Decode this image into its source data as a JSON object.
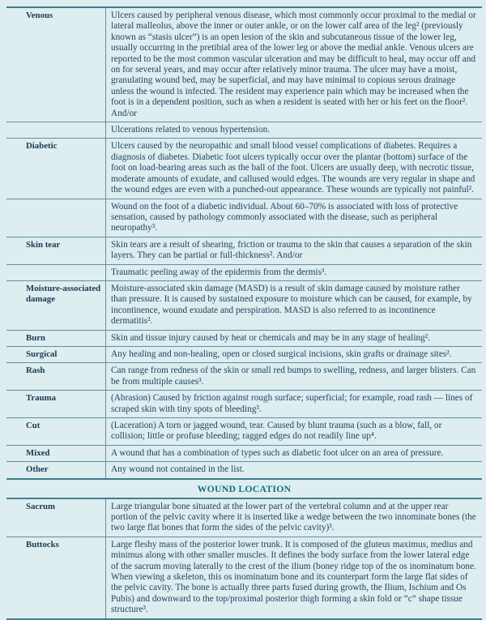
{
  "table": {
    "section_header": "WOUND LOCATION",
    "colors": {
      "background": "#ddedf0",
      "row_border": "#5d929d",
      "section_border": "#417e8b",
      "body_text": "#21455e",
      "label_text": "#1c3a52",
      "section_header_text": "#156e83"
    },
    "wound_types": [
      {
        "label": "Venous",
        "desc": "Ulcers caused by peripheral venous disease, which most commonly occur proximal to the medial or lateral malleolus, above the inner or outer ankle, or on the lower calf area of the leg² (previously known as “stasis ulcer”) is an open lesion of the skin and subcutaneous tissue of the lower leg, usually occurring in the pretibial area of the lower leg or above the medial ankle. Venous ulcers are reported to be the most common vascular ulceration and may be difficult to heal, may occur off and on for several years, and may occur after relatively minor trauma. The ulcer may have a moist, granulating wound bed, may be superficial, and may have minimal to copious serous drainage unless the wound is infected. The resident may experience pain which may be increased when the foot is in a dependent position, such as when a resident is seated with her or his feet on the floor². And/or"
      },
      {
        "label": "",
        "desc": "Ulcerations related to venous hypertension."
      },
      {
        "label": "Diabetic",
        "desc": "Ulcers caused by the neuropathic and small blood vessel complications of diabetes. Requires a diagnosis of diabetes. Diabetic foot ulcers typically occur over the plantar (bottom) surface of the foot on load-bearing areas such as the ball of the foot. Ulcers are usually deep, with necrotic tissue, moderate amounts of exudate, and callused would edges. The wounds are very regular in shape and the wound edges are even with a punched-out appearance. These wounds are typically not painful²."
      },
      {
        "label": "",
        "desc": "Wound on the foot of a diabetic individual. About 60–70% is associated with loss of protective sensation, caused by pathology commonly associated with the disease, such as peripheral neuropathy³."
      },
      {
        "label": "Skin tear",
        "desc": "Skin tears are a result of shearing, friction or trauma to the skin that causes a separation of the skin layers. They can be partial or full-thickness². And/or"
      },
      {
        "label": "",
        "desc": "Traumatic peeling away of the epidermis from the dermis³."
      },
      {
        "label": "Moisture-associated damage",
        "desc": "Moisture-associated skin damage (MASD) is a result of skin damage caused by moisture rather than pressure. It is caused by sustained exposure to moisture which can be caused, for example, by incontinence, wound exudate and perspiration. MASD is also referred to as incontinence dermatitis²."
      },
      {
        "label": "Burn",
        "desc": "Skin and tissue injury caused by heat or chemicals and may be in any stage of healing²."
      },
      {
        "label": "Surgical",
        "desc": "Any healing and non-healing, open or closed surgical incisions, skin grafts or drainage sites²."
      },
      {
        "label": "Rash",
        "desc": "Can range from redness of the skin or small red bumps to swelling, redness, and larger blisters. Can be from multiple causes³."
      },
      {
        "label": "Trauma",
        "desc": "(Abrasion) Caused by friction against rough surface; superficial; for example, road rash — lines of scraped skin with tiny spots of bleeding³."
      },
      {
        "label": "Cut",
        "desc": "(Laceration) A torn or jagged wound, tear. Caused by blunt trauma (such as a blow, fall, or collision; little or profuse bleeding; ragged edges do not readily line up⁴."
      },
      {
        "label": "Mixed",
        "desc": "A wound that has a combination of types such as diabetic foot ulcer on an area of pressure."
      },
      {
        "label": "Other",
        "desc": "Any wound not contained in the list."
      }
    ],
    "locations": [
      {
        "label": "Sacrum",
        "desc": "Large triangular bone situated at the lower part of the vertebral column and at the upper rear portion of the pelvic cavity where it is inserted like a wedge between the two innominate bones (the two large flat bones that form the sides of the pelvic cavity)³."
      },
      {
        "label": "Buttocks",
        "desc": "Large fleshy mass of the posterior lower trunk. It is composed of the gluteus maximus, medius and minimus along with other smaller muscles. It defines the body surface from the lower lateral edge of the sacrum moving laterally to the crest of the ilium (boney ridge top of the os inominatum bone. When viewing a skeleton, this os inominatum bone and its counterpart form the large flat sides of the pelvic cavity. The bone is actually three parts fused during growth, the Ilium, Ischium and Os Pubis) and downward to the top/proximal posterior thigh forming a skin fold or “c” shape tissue structure³."
      }
    ]
  }
}
